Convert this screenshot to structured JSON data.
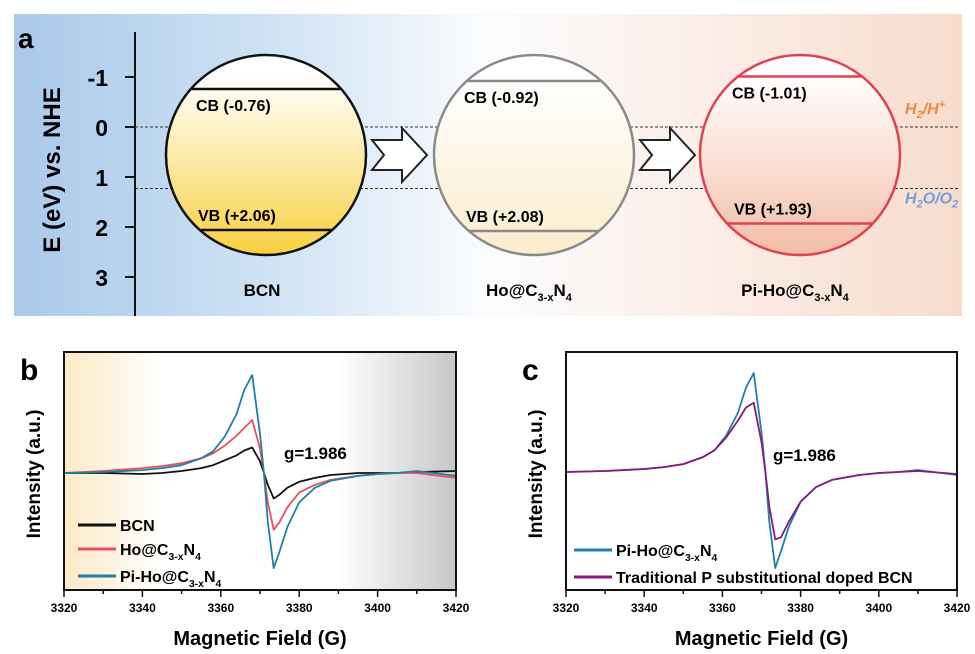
{
  "panel_a": {
    "letter": "a",
    "ylabel": "E (eV) vs. NHE",
    "ticks": [
      -1,
      0,
      1,
      2,
      3
    ],
    "tick_labels": [
      "-1",
      "0",
      "1",
      "2",
      "3"
    ],
    "ylim": [
      -1.9,
      3.7
    ],
    "reference_levels": [
      {
        "value": 0,
        "label_main": "H",
        "label_sub": "2",
        "label_rest": "/H",
        "label_sup": "+",
        "color": "#f08a3c"
      },
      {
        "value": 1.23,
        "label_main": "H",
        "label_sub": "2",
        "label_rest": "O/O",
        "label_sub2": "2",
        "color": "#6f9fdc"
      }
    ],
    "materials": [
      {
        "name_parts": [
          "BCN"
        ],
        "cb": -0.76,
        "vb": 2.06,
        "cb_label": "CB (-0.76)",
        "vb_label": "VB (+2.06)",
        "stroke": "#111111",
        "fill_top": "#ffffff",
        "fill_bottom": "#f8d040"
      },
      {
        "name_parts": [
          "Ho@C",
          "3-x",
          "N",
          "4"
        ],
        "cb": -0.92,
        "vb": 2.08,
        "cb_label": "CB (-0.92)",
        "vb_label": "VB (+2.08)",
        "stroke": "#8a8a8a",
        "fill_top": "#ffffff",
        "fill_bottom": "#fbeccb"
      },
      {
        "name_parts": [
          "Pi-Ho@C",
          "3-x",
          "N",
          "4"
        ],
        "cb": -1.01,
        "vb": 1.93,
        "cb_label": "CB (-1.01)",
        "vb_label": "VB (+1.93)",
        "stroke": "#e2414f",
        "fill_top": "#ffffff",
        "fill_bottom": "#f2bda6"
      }
    ],
    "arrow_icon": "right-arrow-icon"
  },
  "chart_data": [
    {
      "type": "line",
      "panel": "b",
      "xlabel": "Magnetic Field (G)",
      "ylabel": "Intensity (a.u.)",
      "xlim": [
        3320,
        3420
      ],
      "ylim": [
        -1.25,
        1.2
      ],
      "xticks": [
        3320,
        3340,
        3360,
        3380,
        3400,
        3420
      ],
      "annotation": "g=1.986",
      "legend": "bottom-left",
      "x": [
        3320,
        3330,
        3340,
        3345,
        3350,
        3355,
        3358,
        3361,
        3364,
        3366,
        3368,
        3370,
        3371,
        3372,
        3373.5,
        3375,
        3377,
        3380,
        3384,
        3388,
        3395,
        3400,
        3405,
        3410,
        3420
      ],
      "series": [
        {
          "name_parts": [
            "BCN"
          ],
          "color": "#111111",
          "values": [
            0,
            0,
            -0.01,
            0,
            0.02,
            0.05,
            0.08,
            0.13,
            0.18,
            0.23,
            0.26,
            0.12,
            0,
            -0.12,
            -0.26,
            -0.22,
            -0.15,
            -0.09,
            -0.05,
            -0.02,
            0,
            0,
            0,
            0.01,
            0.02
          ]
        },
        {
          "name_parts": [
            "Ho@C",
            "3-x",
            "N",
            "4"
          ],
          "color": "#e8505c",
          "values": [
            0,
            0.02,
            0.05,
            0.07,
            0.1,
            0.15,
            0.2,
            0.28,
            0.38,
            0.46,
            0.54,
            0.25,
            0,
            -0.3,
            -0.58,
            -0.5,
            -0.35,
            -0.2,
            -0.12,
            -0.07,
            -0.03,
            -0.01,
            0,
            0,
            -0.05
          ]
        },
        {
          "name_parts": [
            "Pi-Ho@C",
            "3-x",
            "N",
            "4"
          ],
          "color": "#1f7fa6",
          "values": [
            0,
            0.01,
            0.03,
            0.05,
            0.08,
            0.15,
            0.22,
            0.37,
            0.6,
            0.85,
            1.0,
            0.4,
            0,
            -0.5,
            -0.97,
            -0.8,
            -0.55,
            -0.3,
            -0.15,
            -0.08,
            -0.03,
            -0.01,
            0,
            0.02,
            -0.03
          ]
        }
      ]
    },
    {
      "type": "line",
      "panel": "c",
      "xlabel": "Magnetic Field (G)",
      "ylabel": "Intensity (a.u.)",
      "xlim": [
        3320,
        3420
      ],
      "ylim": [
        -1.25,
        1.2
      ],
      "xticks": [
        3320,
        3340,
        3360,
        3380,
        3400,
        3420
      ],
      "annotation": "g=1.986",
      "legend": "bottom-left",
      "x": [
        3320,
        3330,
        3340,
        3345,
        3350,
        3355,
        3358,
        3361,
        3364,
        3366,
        3368,
        3370,
        3371,
        3372,
        3373.5,
        3375,
        3377,
        3380,
        3384,
        3388,
        3395,
        3400,
        3405,
        3410,
        3420
      ],
      "series": [
        {
          "name_parts": [
            "Pi-Ho@C",
            "3-x",
            "N",
            "4"
          ],
          "color": "#1f7fa6",
          "values": [
            0,
            0.01,
            0.03,
            0.05,
            0.08,
            0.15,
            0.22,
            0.37,
            0.6,
            0.85,
            1.0,
            0.4,
            0,
            -0.5,
            -0.97,
            -0.8,
            -0.55,
            -0.3,
            -0.15,
            -0.08,
            -0.03,
            -0.01,
            0,
            0.02,
            -0.03
          ]
        },
        {
          "name_parts": [
            "Traditional P substitutional doped BCN"
          ],
          "color": "#8a1a7e",
          "values": [
            0,
            0.01,
            0.03,
            0.05,
            0.08,
            0.15,
            0.22,
            0.35,
            0.52,
            0.65,
            0.7,
            0.3,
            0,
            -0.35,
            -0.68,
            -0.66,
            -0.5,
            -0.3,
            -0.15,
            -0.08,
            -0.03,
            -0.01,
            0,
            0.01,
            -0.02
          ]
        }
      ]
    }
  ],
  "panel_letters": {
    "b": "b",
    "c": "c"
  }
}
